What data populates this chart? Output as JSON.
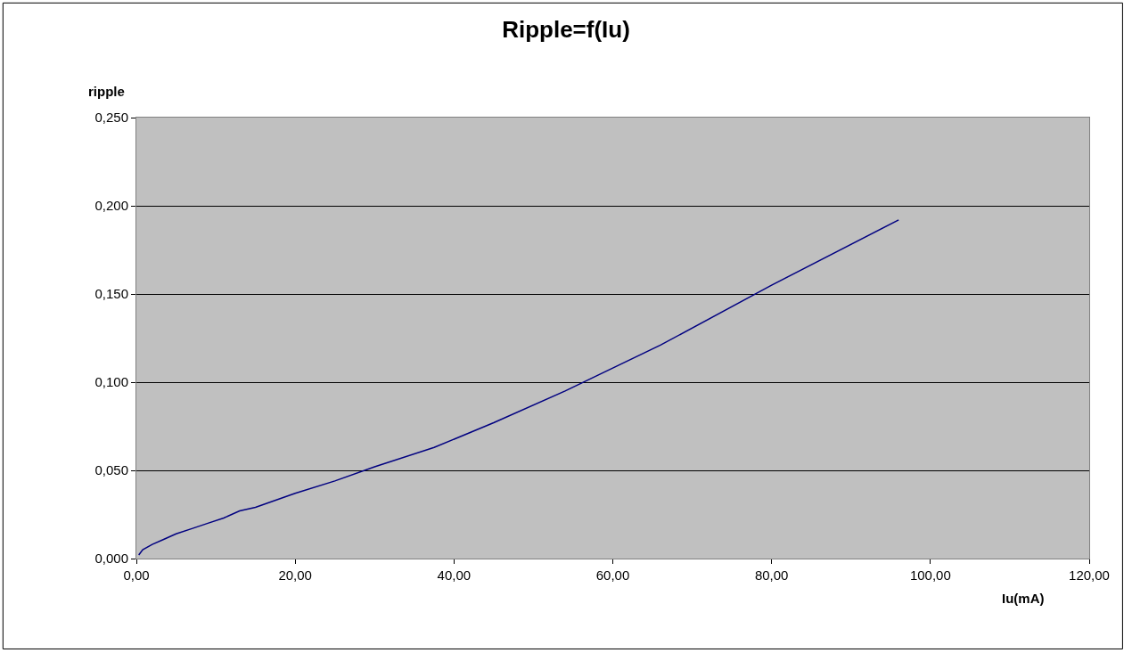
{
  "chart_data": {
    "type": "line",
    "title": "Ripple=f(Iu)",
    "xlabel": "Iu(mA)",
    "ylabel": "ripple",
    "x": [
      0.3,
      0.8,
      2,
      3.5,
      5,
      7,
      9,
      11,
      13,
      15,
      20,
      25,
      30,
      37.5,
      45,
      54,
      60,
      66,
      80,
      96
    ],
    "series": [
      {
        "color": "#000080",
        "values": [
          0.002,
          0.005,
          0.008,
          0.011,
          0.014,
          0.017,
          0.02,
          0.023,
          0.027,
          0.029,
          0.037,
          0.044,
          0.052,
          0.063,
          0.077,
          0.095,
          0.108,
          0.121,
          0.155,
          0.192
        ]
      }
    ],
    "xlim": [
      0,
      120
    ],
    "ylim": [
      0,
      0.25
    ],
    "xticks": [
      {
        "value": 0,
        "label": "0,00"
      },
      {
        "value": 20,
        "label": "20,00"
      },
      {
        "value": 40,
        "label": "40,00"
      },
      {
        "value": 60,
        "label": "60,00"
      },
      {
        "value": 80,
        "label": "80,00"
      },
      {
        "value": 100,
        "label": "100,00"
      },
      {
        "value": 120,
        "label": "120,00"
      }
    ],
    "yticks": [
      {
        "value": 0,
        "label": "0,000"
      },
      {
        "value": 0.05,
        "label": "0,050"
      },
      {
        "value": 0.1,
        "label": "0,100"
      },
      {
        "value": 0.15,
        "label": "0,150"
      },
      {
        "value": 0.2,
        "label": "0,200"
      },
      {
        "value": 0.25,
        "label": "0,250"
      }
    ],
    "grid": "y",
    "marker": "none",
    "line_style": "solid"
  }
}
